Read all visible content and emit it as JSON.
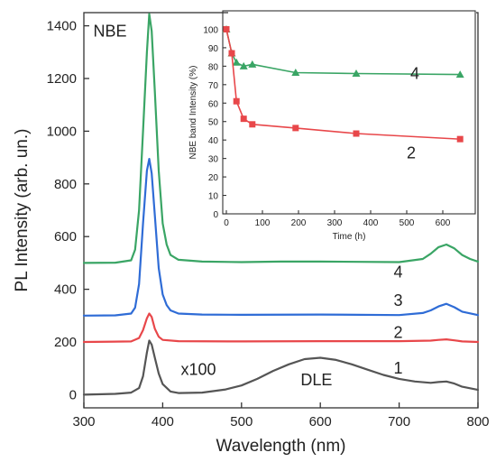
{
  "chart_data": [
    {
      "type": "line",
      "xlabel": "Wavelength (nm)",
      "ylabel": "PL Intensity (arb. un.)",
      "xlim": [
        300,
        800
      ],
      "ylim": [
        -50,
        1450
      ],
      "x_ticks": [
        300,
        400,
        500,
        600,
        700,
        800
      ],
      "y_ticks": [
        0,
        200,
        400,
        600,
        800,
        1000,
        1200,
        1400
      ],
      "grid": false,
      "series": [
        {
          "name": "1",
          "color": "#555555",
          "x": [
            300,
            340,
            360,
            370,
            375,
            380,
            383,
            386,
            390,
            395,
            400,
            410,
            420,
            450,
            480,
            500,
            520,
            540,
            560,
            580,
            600,
            620,
            640,
            660,
            680,
            700,
            720,
            740,
            750,
            760,
            770,
            780,
            800
          ],
          "y": [
            0,
            3,
            8,
            25,
            70,
            160,
            205,
            190,
            140,
            80,
            40,
            12,
            6,
            8,
            20,
            35,
            60,
            90,
            115,
            135,
            140,
            132,
            115,
            95,
            75,
            60,
            50,
            45,
            48,
            50,
            42,
            30,
            18
          ]
        },
        {
          "name": "2",
          "color": "#e8474a",
          "x": [
            300,
            360,
            370,
            375,
            380,
            383,
            386,
            390,
            395,
            400,
            420,
            500,
            600,
            700,
            740,
            750,
            760,
            770,
            780,
            800
          ],
          "y": [
            200,
            202,
            215,
            245,
            290,
            308,
            295,
            250,
            220,
            208,
            203,
            202,
            203,
            203,
            205,
            208,
            210,
            206,
            202,
            200
          ]
        },
        {
          "name": "3",
          "color": "#2f6cd6",
          "x": [
            300,
            340,
            360,
            365,
            370,
            375,
            380,
            383,
            386,
            390,
            395,
            400,
            405,
            410,
            420,
            450,
            500,
            600,
            700,
            730,
            740,
            750,
            760,
            770,
            780,
            800
          ],
          "y": [
            300,
            301,
            308,
            330,
            420,
            650,
            850,
            895,
            840,
            680,
            480,
            380,
            340,
            320,
            308,
            304,
            303,
            304,
            302,
            310,
            320,
            335,
            345,
            332,
            315,
            302
          ]
        },
        {
          "name": "4",
          "color": "#3aa565",
          "x": [
            300,
            340,
            360,
            365,
            370,
            375,
            380,
            383,
            386,
            390,
            395,
            400,
            405,
            410,
            420,
            450,
            500,
            550,
            600,
            650,
            700,
            730,
            740,
            750,
            760,
            770,
            780,
            790,
            800
          ],
          "y": [
            500,
            501,
            510,
            550,
            700,
            1000,
            1300,
            1445,
            1380,
            1150,
            850,
            650,
            570,
            530,
            512,
            505,
            503,
            505,
            505,
            504,
            503,
            515,
            535,
            560,
            570,
            555,
            530,
            515,
            505
          ]
        }
      ],
      "annotations": [
        {
          "text": "NBE",
          "x": 312,
          "y": 1360
        },
        {
          "text": "x100",
          "x": 423,
          "y": 75
        },
        {
          "text": "DLE",
          "x": 575,
          "y": 35
        },
        {
          "text": "4",
          "x": 693,
          "y": 445
        },
        {
          "text": "3",
          "x": 693,
          "y": 337
        },
        {
          "text": "2",
          "x": 693,
          "y": 215
        },
        {
          "text": "1",
          "x": 693,
          "y": 80
        }
      ]
    },
    {
      "type": "line",
      "xlabel": "Time (h)",
      "ylabel": "NBE band Intensity (%)",
      "xlim": [
        -10,
        690
      ],
      "ylim": [
        0,
        110
      ],
      "x_ticks": [
        0,
        100,
        200,
        300,
        400,
        500,
        600
      ],
      "y_ticks": [
        0,
        10,
        20,
        30,
        40,
        50,
        60,
        70,
        80,
        90,
        100
      ],
      "grid": false,
      "series": [
        {
          "name": "4",
          "color": "#3aa565",
          "marker": "triangle",
          "x": [
            0,
            15,
            28,
            48,
            72,
            192,
            360,
            648
          ],
          "y": [
            100,
            87,
            82,
            80,
            81,
            76.5,
            76,
            75.5
          ]
        },
        {
          "name": "2",
          "color": "#e8474a",
          "marker": "square",
          "x": [
            0,
            15,
            28,
            48,
            72,
            192,
            360,
            648
          ],
          "y": [
            100,
            87,
            61,
            51.5,
            48.5,
            46.5,
            43.5,
            40.5
          ]
        }
      ],
      "annotations": [
        {
          "text": "4",
          "x": 510,
          "y": 73
        },
        {
          "text": "2",
          "x": 500,
          "y": 30
        }
      ]
    }
  ]
}
